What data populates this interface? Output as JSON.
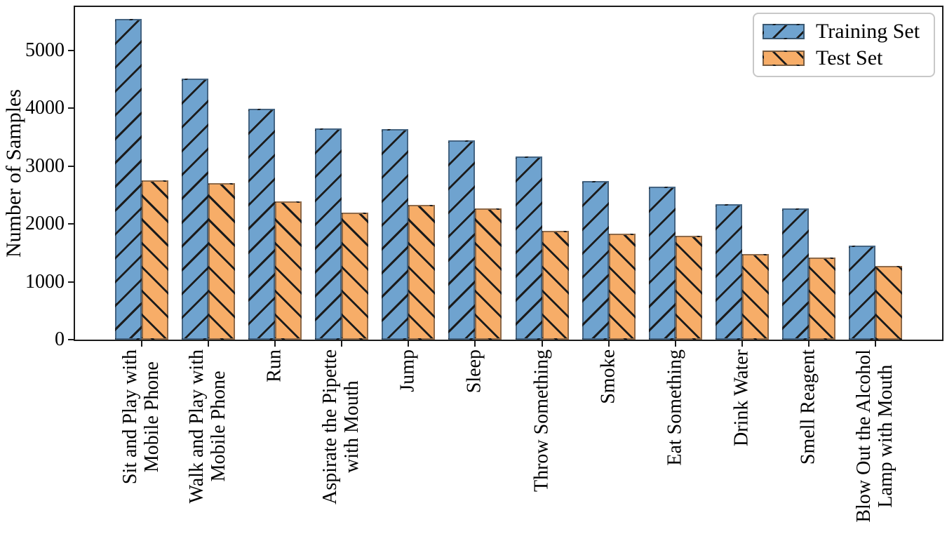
{
  "chart_data": {
    "type": "bar",
    "title": "",
    "ylabel": "Number of Samples",
    "xlabel": "",
    "ylim": [
      0,
      5750
    ],
    "yticks": [
      0,
      1000,
      2000,
      3000,
      4000,
      5000
    ],
    "grid": false,
    "legend_position": "upper right",
    "bar_hatches": [
      "/",
      "\\"
    ],
    "colors": {
      "training_fill": "#6FA3CF",
      "test_fill": "#F7AD68",
      "hatch": "#1c1c1c",
      "axis": "#1a1a1a"
    },
    "categories": [
      "Sit and Play with\nMobile Phone",
      "Walk and Play with\nMobile Phone",
      "Run",
      "Aspirate the Pipette\nwith Mouth",
      "Jump",
      "Sleep",
      "Throw Something",
      "Smoke",
      "Eat Something",
      "Drink Water",
      "Smell Reagent",
      "Blow Out the Alcohol\nLamp with Mouth"
    ],
    "series": [
      {
        "name": "Training Set",
        "values": [
          5540,
          4510,
          3990,
          3650,
          3640,
          3450,
          3170,
          2740,
          2640,
          2340,
          2270,
          1630
        ]
      },
      {
        "name": "Test Set",
        "values": [
          2750,
          2700,
          2390,
          2190,
          2330,
          2270,
          1880,
          1830,
          1800,
          1480,
          1420,
          1270
        ]
      }
    ]
  }
}
